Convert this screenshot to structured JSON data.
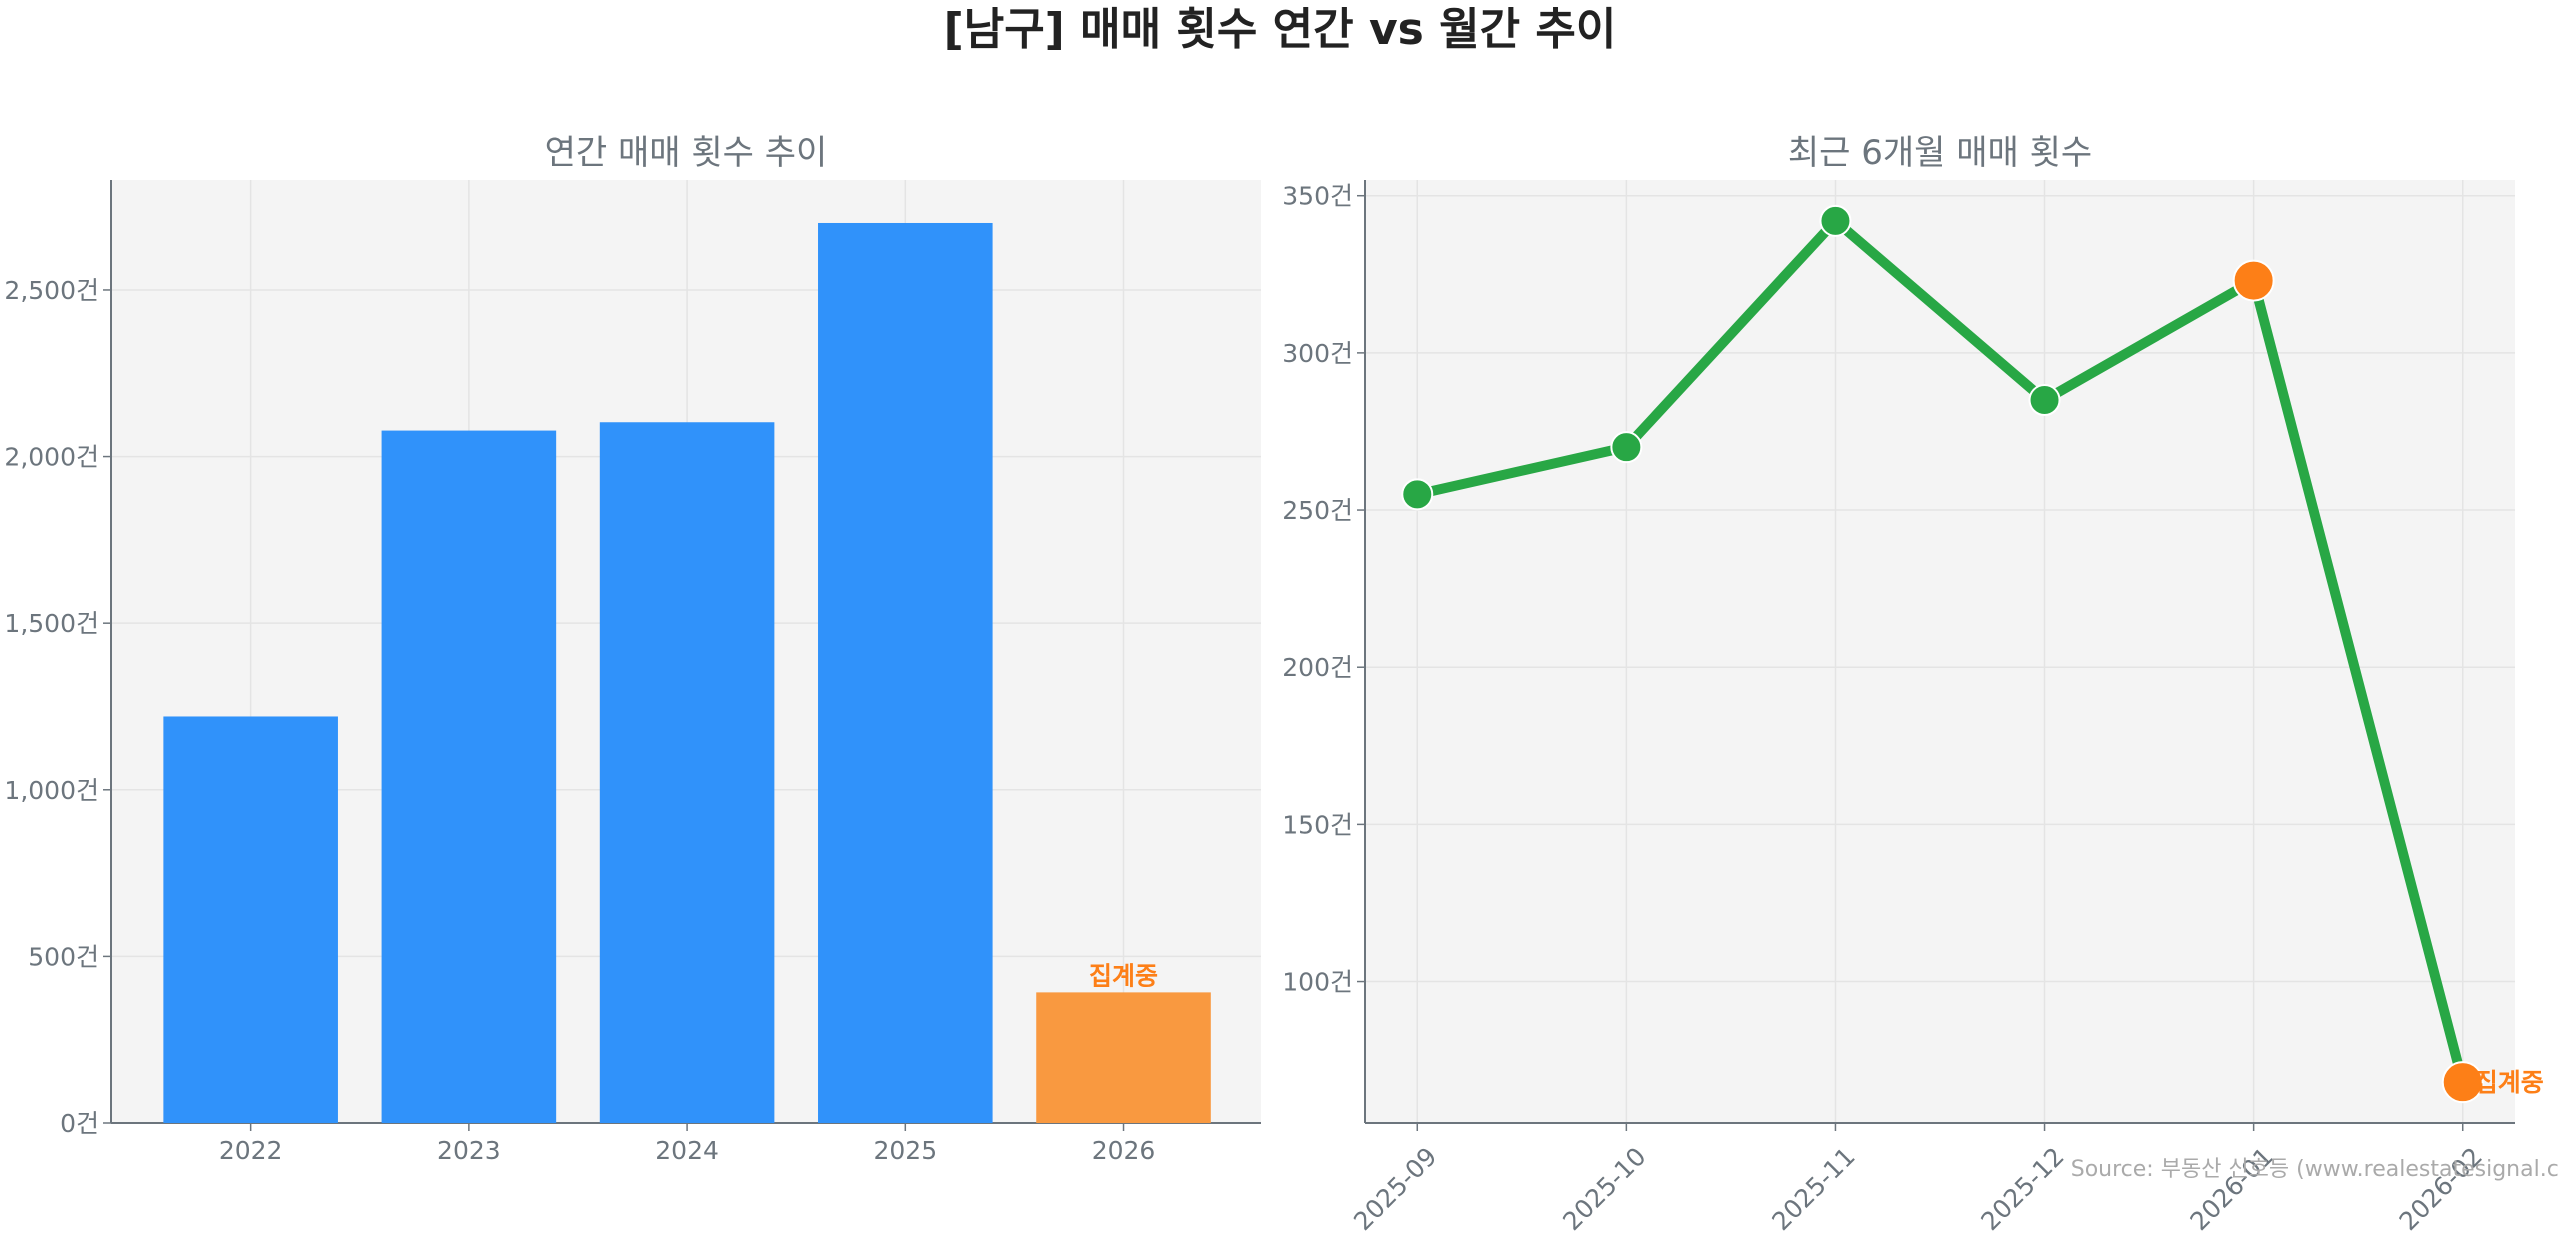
{
  "title": "[남구] 매매 횟수 연간 vs 월간 추이",
  "source": "Source: 부동산 신호등 (www.realestatesignal.co.kr)",
  "colors": {
    "bar": "#3092fa",
    "bar_partial": "#f99940",
    "line": "#28a745",
    "marker_partial": "#fd7f17",
    "annotation": "#fd7f17",
    "plot_bg": "#f4f4f4",
    "tick_text": "#6c757d"
  },
  "chart_data": [
    {
      "type": "bar",
      "title": "연간 매매 횟수 추이",
      "categories": [
        "2022",
        "2023",
        "2024",
        "2025",
        "2026"
      ],
      "values": [
        1220,
        2078,
        2103,
        2701,
        392
      ],
      "partial": [
        false,
        false,
        false,
        false,
        true
      ],
      "annotation": {
        "category": "2026",
        "text": "집계중"
      },
      "ylim": [
        0,
        2830
      ],
      "yticks": [
        0,
        500,
        1000,
        1500,
        2000,
        2500
      ],
      "ytick_labels": [
        "0건",
        "500건",
        "1,000건",
        "1,500건",
        "2,000건",
        "2,500건"
      ],
      "grid": true
    },
    {
      "type": "line",
      "title": "최근 6개월 매매 횟수",
      "categories": [
        "2025-09",
        "2025-10",
        "2025-11",
        "2025-12",
        "2026-01",
        "2026-02"
      ],
      "values": [
        255,
        270,
        342,
        285,
        323,
        68
      ],
      "highlighted": [
        false,
        false,
        false,
        false,
        true,
        true
      ],
      "annotation": {
        "category": "2026-02",
        "text": "집계중"
      },
      "ylim": [
        55,
        355
      ],
      "yticks": [
        100,
        150,
        200,
        250,
        300,
        350
      ],
      "ytick_labels": [
        "100건",
        "150건",
        "200건",
        "250건",
        "300건",
        "350건"
      ],
      "grid": true
    }
  ]
}
